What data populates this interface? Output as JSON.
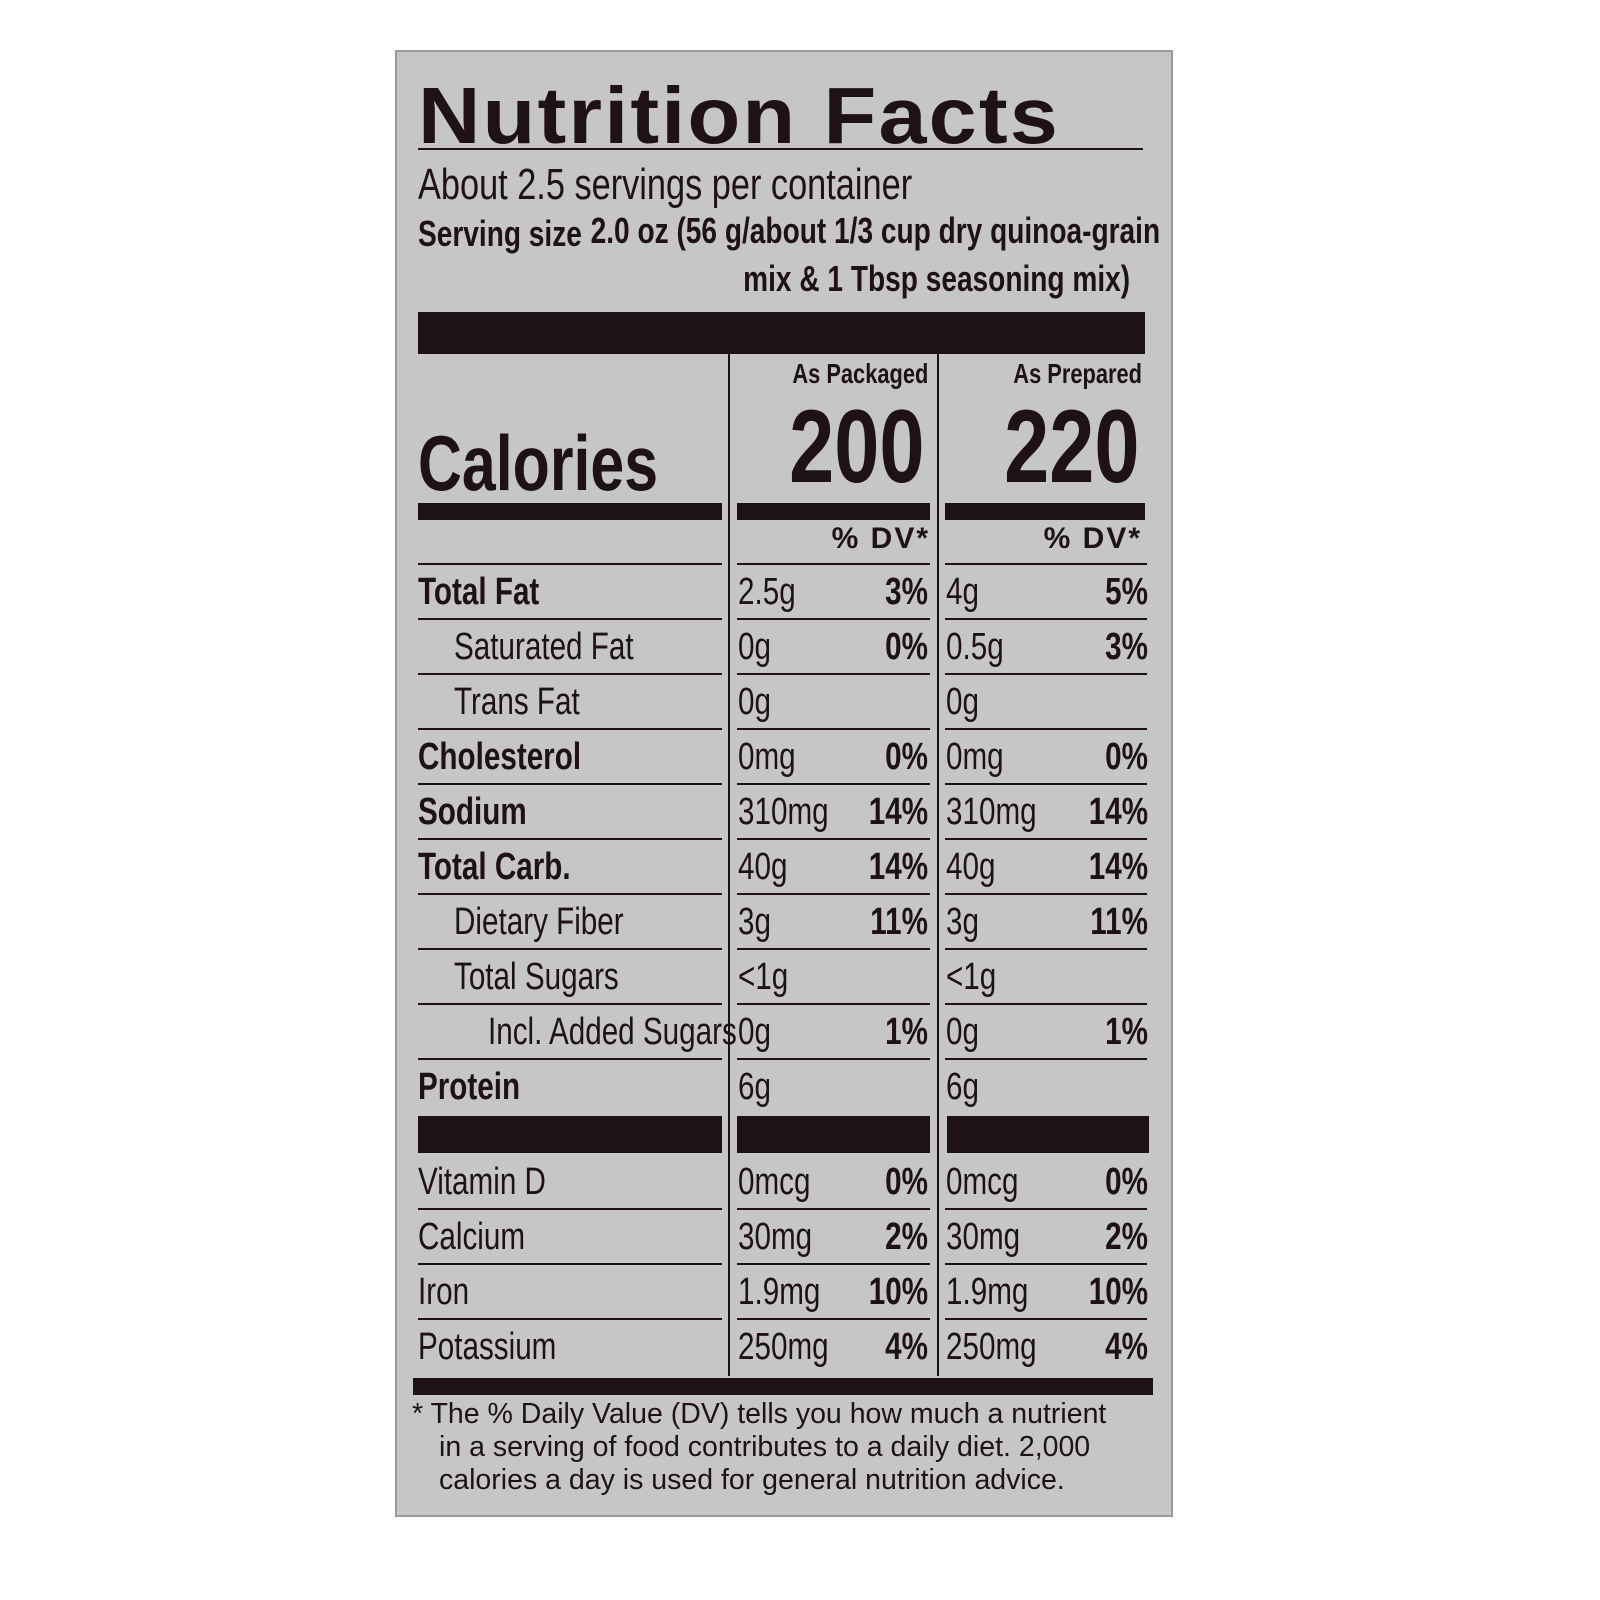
{
  "title": "Nutrition Facts",
  "servings_per_container": "About 2.5 servings per container",
  "serving_size": {
    "label": "Serving size",
    "value_line1": "2.0 oz (56 g/about 1/3 cup dry quinoa-grain",
    "value_line2": "mix & 1 Tbsp seasoning mix)"
  },
  "columns": {
    "packaged": "As Packaged",
    "prepared": "As Prepared"
  },
  "calories": {
    "label": "Calories",
    "packaged": "200",
    "prepared": "220"
  },
  "dv_header": "% DV*",
  "nutrients": [
    {
      "name": "Total Fat",
      "bold": true,
      "indent": 0,
      "pk_amt": "2.5g",
      "pk_dv": "3%",
      "pr_amt": "4g",
      "pr_dv": "5%"
    },
    {
      "name": "Saturated Fat",
      "bold": false,
      "indent": 1,
      "pk_amt": "0g",
      "pk_dv": "0%",
      "pr_amt": "0.5g",
      "pr_dv": "3%"
    },
    {
      "name": "Trans Fat",
      "bold": false,
      "indent": 1,
      "pk_amt": "0g",
      "pk_dv": "",
      "pr_amt": "0g",
      "pr_dv": ""
    },
    {
      "name": "Cholesterol",
      "bold": true,
      "indent": 0,
      "pk_amt": "0mg",
      "pk_dv": "0%",
      "pr_amt": "0mg",
      "pr_dv": "0%"
    },
    {
      "name": "Sodium",
      "bold": true,
      "indent": 0,
      "pk_amt": "310mg",
      "pk_dv": "14%",
      "pr_amt": "310mg",
      "pr_dv": "14%"
    },
    {
      "name": "Total Carb.",
      "bold": true,
      "indent": 0,
      "pk_amt": "40g",
      "pk_dv": "14%",
      "pr_amt": "40g",
      "pr_dv": "14%"
    },
    {
      "name": "Dietary Fiber",
      "bold": false,
      "indent": 1,
      "pk_amt": "3g",
      "pk_dv": "11%",
      "pr_amt": "3g",
      "pr_dv": "11%"
    },
    {
      "name": "Total Sugars",
      "bold": false,
      "indent": 1,
      "pk_amt": "<1g",
      "pk_dv": "",
      "pr_amt": "<1g",
      "pr_dv": ""
    },
    {
      "name": "Incl. Added Sugars",
      "bold": false,
      "indent": 2,
      "pk_amt": "0g",
      "pk_dv": "1%",
      "pr_amt": "0g",
      "pr_dv": "1%"
    },
    {
      "name": "Protein",
      "bold": true,
      "indent": 0,
      "pk_amt": "6g",
      "pk_dv": "",
      "pr_amt": "6g",
      "pr_dv": ""
    }
  ],
  "vitamins": [
    {
      "name": "Vitamin D",
      "pk_amt": "0mcg",
      "pk_dv": "0%",
      "pr_amt": "0mcg",
      "pr_dv": "0%"
    },
    {
      "name": "Calcium",
      "pk_amt": "30mg",
      "pk_dv": "2%",
      "pr_amt": "30mg",
      "pr_dv": "2%"
    },
    {
      "name": "Iron",
      "pk_amt": "1.9mg",
      "pk_dv": "10%",
      "pr_amt": "1.9mg",
      "pr_dv": "10%"
    },
    {
      "name": "Potassium",
      "pk_amt": "250mg",
      "pk_dv": "4%",
      "pr_amt": "250mg",
      "pr_dv": "4%"
    }
  ],
  "footnote": [
    "* The % Daily Value (DV) tells you how much a nutrient",
    "  in a serving of food contributes to a daily diet. 2,000",
    "  calories a day is used for general nutrition advice."
  ],
  "colors": {
    "label_background": "#c6c6c8",
    "ink": "#1e1214"
  }
}
